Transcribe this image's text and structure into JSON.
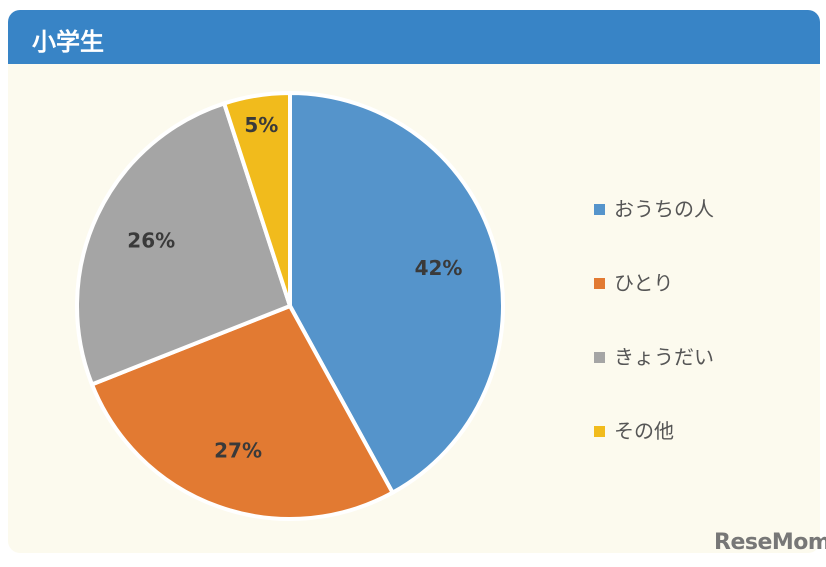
{
  "header": {
    "title": "小学生"
  },
  "chart_data": {
    "type": "pie",
    "categories": [
      "おうちの人",
      "ひとり",
      "きょうだい",
      "その他"
    ],
    "values": [
      42,
      27,
      26,
      5
    ],
    "data_labels": [
      "42%",
      "27%",
      "26%",
      "5%"
    ],
    "colors": [
      "#5594cb",
      "#e27a32",
      "#a5a5a5",
      "#f1bb1c"
    ],
    "start": "top",
    "direction": "clockwise",
    "legend": "right"
  },
  "watermark": "ReseMom"
}
